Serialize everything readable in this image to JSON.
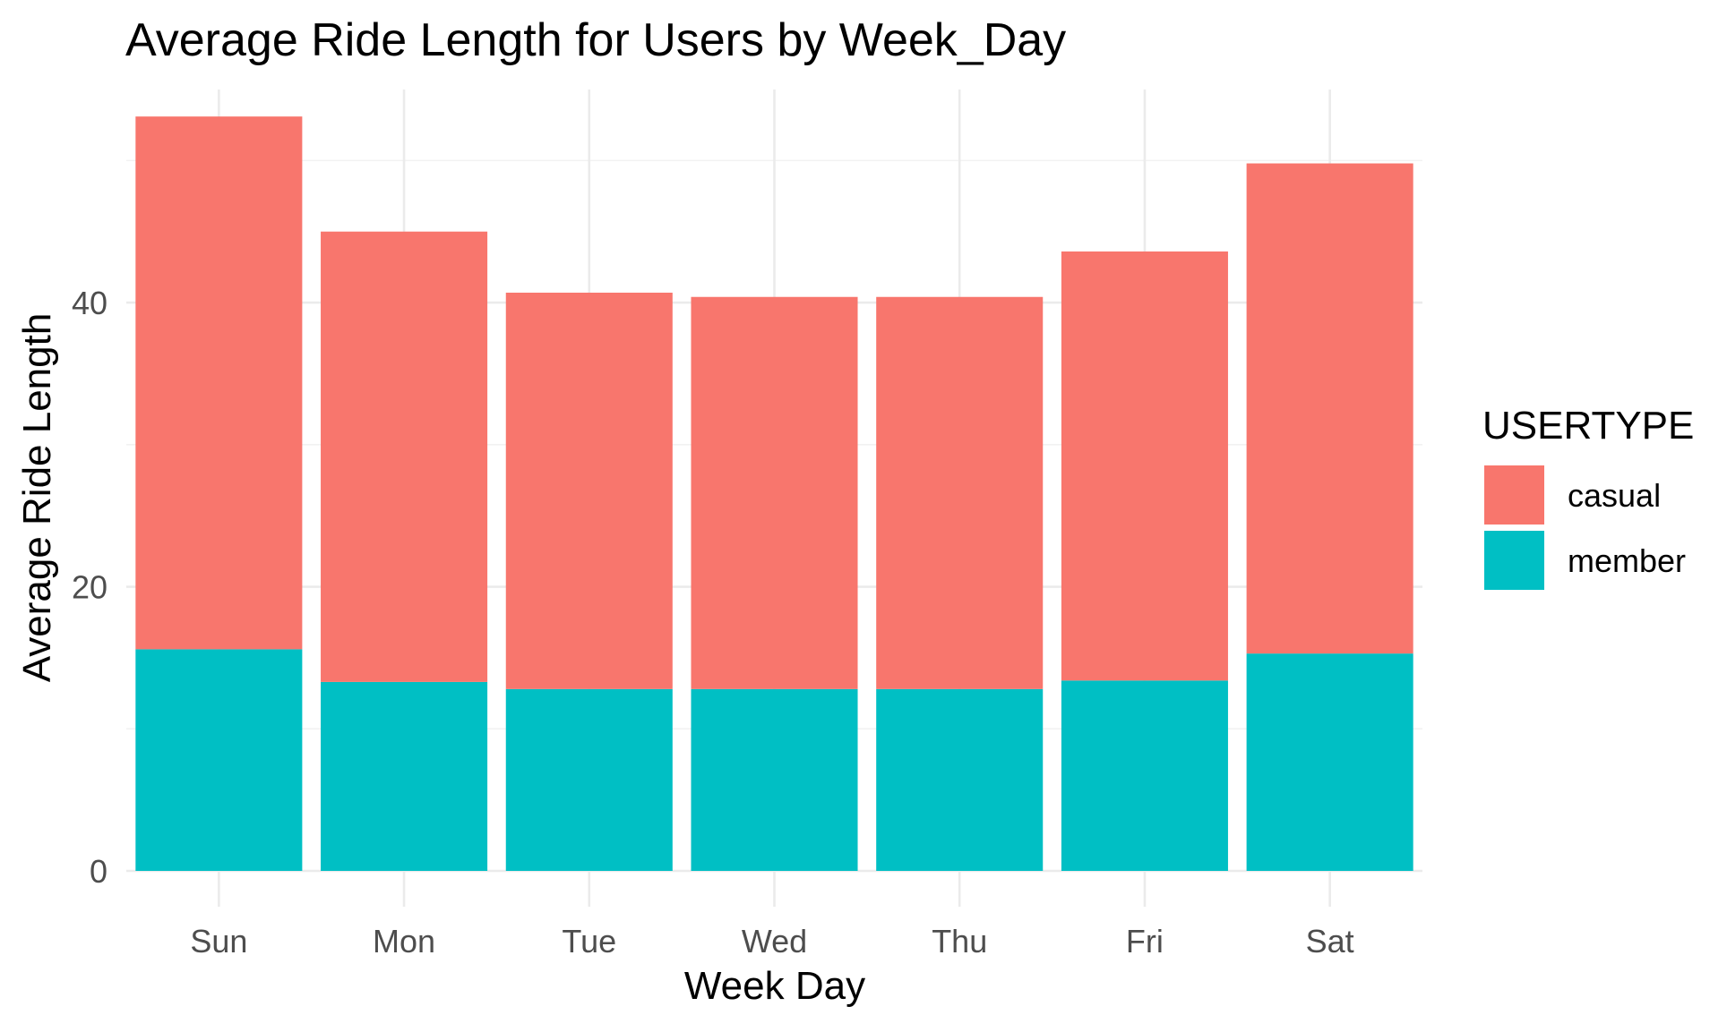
{
  "chart_data": {
    "type": "bar",
    "stacked": true,
    "title": "Average Ride Length for Users by Week_Day",
    "xlabel": "Week Day",
    "ylabel": "Average Ride Length",
    "categories": [
      "Sun",
      "Mon",
      "Tue",
      "Wed",
      "Thu",
      "Fri",
      "Sat"
    ],
    "series": [
      {
        "name": "casual",
        "values": [
          37.5,
          31.7,
          27.9,
          27.6,
          27.6,
          30.2,
          34.5
        ]
      },
      {
        "name": "member",
        "values": [
          15.6,
          13.3,
          12.8,
          12.8,
          12.8,
          13.4,
          15.3
        ]
      }
    ],
    "colors": {
      "casual": "#F8766D",
      "member": "#00BFC4"
    },
    "stack_order_bottom_to_top": [
      "member",
      "casual"
    ],
    "ylim": [
      0,
      55
    ],
    "yticks": [
      0,
      20,
      40
    ],
    "legend": {
      "title": "USERTYPE",
      "placement": "right"
    },
    "grid": true
  }
}
